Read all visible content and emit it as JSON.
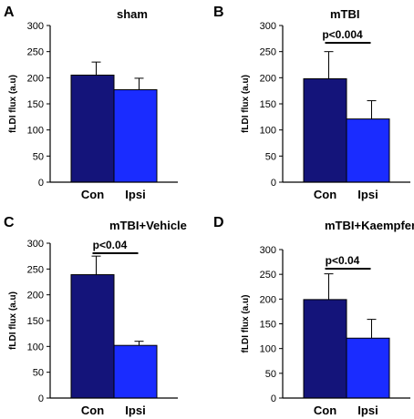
{
  "colors": {
    "con": "#14147a",
    "ipsi": "#1a2cff",
    "axis": "#000000"
  },
  "chart_data": [
    {
      "type": "bar",
      "panel": "A",
      "title": "sham",
      "ylabel": "fLDI flux (a.u)",
      "categories": [
        "Con",
        "Ipsi"
      ],
      "values": [
        205,
        177
      ],
      "errors": [
        25,
        22
      ],
      "ylim": [
        0,
        300
      ],
      "yticks": [
        "0",
        "50",
        "100",
        "150",
        "200",
        "250",
        "300"
      ],
      "significance": ""
    },
    {
      "type": "bar",
      "panel": "B",
      "title": "mTBI",
      "ylabel": "fLDI flux (a.u)",
      "categories": [
        "Con",
        "Ipsi"
      ],
      "values": [
        198,
        121
      ],
      "errors": [
        52,
        35
      ],
      "ylim": [
        0,
        300
      ],
      "yticks": [
        "0",
        "50",
        "100",
        "150",
        "200",
        "250",
        "300"
      ],
      "significance": "p<0.004"
    },
    {
      "type": "bar",
      "panel": "C",
      "title": "mTBI+Vehicle",
      "ylabel": "fLDI flux (a.u)",
      "categories": [
        "Con",
        "Ipsi"
      ],
      "values": [
        239,
        102
      ],
      "errors": [
        36,
        8
      ],
      "ylim": [
        0,
        300
      ],
      "yticks": [
        "0",
        "50",
        "100",
        "150",
        "200",
        "250",
        "300"
      ],
      "significance": "p<0.04"
    },
    {
      "type": "bar",
      "panel": "D",
      "title": "mTBI+Kaempferol",
      "ylabel": "fLDI flux (a.u)",
      "categories": [
        "Con",
        "Ipsi"
      ],
      "values": [
        199,
        121
      ],
      "errors": [
        52,
        38
      ],
      "ylim": [
        0,
        300
      ],
      "yticks": [
        "0",
        "50",
        "100",
        "150",
        "200",
        "250",
        "300"
      ],
      "significance": "p<0.04"
    }
  ]
}
